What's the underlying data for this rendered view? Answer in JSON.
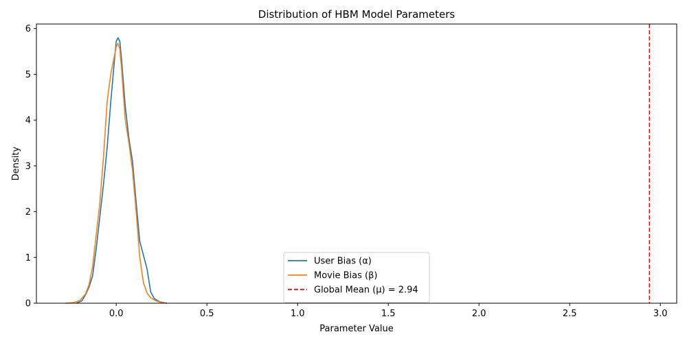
{
  "chart_data": {
    "type": "line",
    "title": "Distribution of HBM Model Parameters",
    "xlabel": "Parameter Value",
    "ylabel": "Density",
    "xlim": [
      -0.44,
      3.09
    ],
    "ylim": [
      0,
      6.1
    ],
    "xticks": [
      0.0,
      0.5,
      1.0,
      1.5,
      2.0,
      2.5,
      3.0
    ],
    "xtick_labels": [
      "0.0",
      "0.5",
      "1.0",
      "1.5",
      "2.0",
      "2.5",
      "3.0"
    ],
    "yticks": [
      0,
      1,
      2,
      3,
      4,
      5,
      6
    ],
    "ytick_labels": [
      "0",
      "1",
      "2",
      "3",
      "4",
      "5",
      "6"
    ],
    "grid": false,
    "legend_position": "bottom-center",
    "series": [
      {
        "name": "User Bias (α)",
        "color": "#1f77b4",
        "style": "solid",
        "points": [
          [
            -0.22,
            0.0
          ],
          [
            -0.19,
            0.05
          ],
          [
            -0.17,
            0.18
          ],
          [
            -0.15,
            0.35
          ],
          [
            -0.13,
            0.6
          ],
          [
            -0.11,
            1.2
          ],
          [
            -0.09,
            1.9
          ],
          [
            -0.07,
            2.6
          ],
          [
            -0.05,
            3.4
          ],
          [
            -0.03,
            4.4
          ],
          [
            -0.01,
            5.3
          ],
          [
            0.0,
            5.72
          ],
          [
            0.01,
            5.8
          ],
          [
            0.02,
            5.72
          ],
          [
            0.03,
            5.3
          ],
          [
            0.05,
            4.3
          ],
          [
            0.07,
            3.6
          ],
          [
            0.09,
            3.1
          ],
          [
            0.11,
            2.2
          ],
          [
            0.13,
            1.35
          ],
          [
            0.15,
            1.05
          ],
          [
            0.17,
            0.75
          ],
          [
            0.19,
            0.25
          ],
          [
            0.21,
            0.1
          ],
          [
            0.24,
            0.03
          ],
          [
            0.28,
            0.0
          ]
        ]
      },
      {
        "name": "Movie Bias (β)",
        "color": "#ff7f0e",
        "style": "solid",
        "points": [
          [
            -0.28,
            0.0
          ],
          [
            -0.24,
            0.01
          ],
          [
            -0.2,
            0.06
          ],
          [
            -0.17,
            0.2
          ],
          [
            -0.15,
            0.4
          ],
          [
            -0.13,
            0.8
          ],
          [
            -0.11,
            1.5
          ],
          [
            -0.09,
            2.2
          ],
          [
            -0.07,
            3.2
          ],
          [
            -0.05,
            4.4
          ],
          [
            -0.03,
            5.0
          ],
          [
            -0.01,
            5.4
          ],
          [
            0.0,
            5.6
          ],
          [
            0.01,
            5.68
          ],
          [
            0.02,
            5.55
          ],
          [
            0.03,
            5.1
          ],
          [
            0.05,
            4.0
          ],
          [
            0.07,
            3.5
          ],
          [
            0.09,
            2.9
          ],
          [
            0.11,
            2.0
          ],
          [
            0.13,
            1.0
          ],
          [
            0.15,
            0.45
          ],
          [
            0.17,
            0.22
          ],
          [
            0.19,
            0.12
          ],
          [
            0.22,
            0.05
          ],
          [
            0.25,
            0.01
          ],
          [
            0.28,
            0.0
          ]
        ]
      }
    ],
    "vlines": [
      {
        "name": "Global Mean (μ) = 2.94",
        "x": 2.94,
        "color": "#ff0000",
        "style": "dashed"
      }
    ]
  }
}
